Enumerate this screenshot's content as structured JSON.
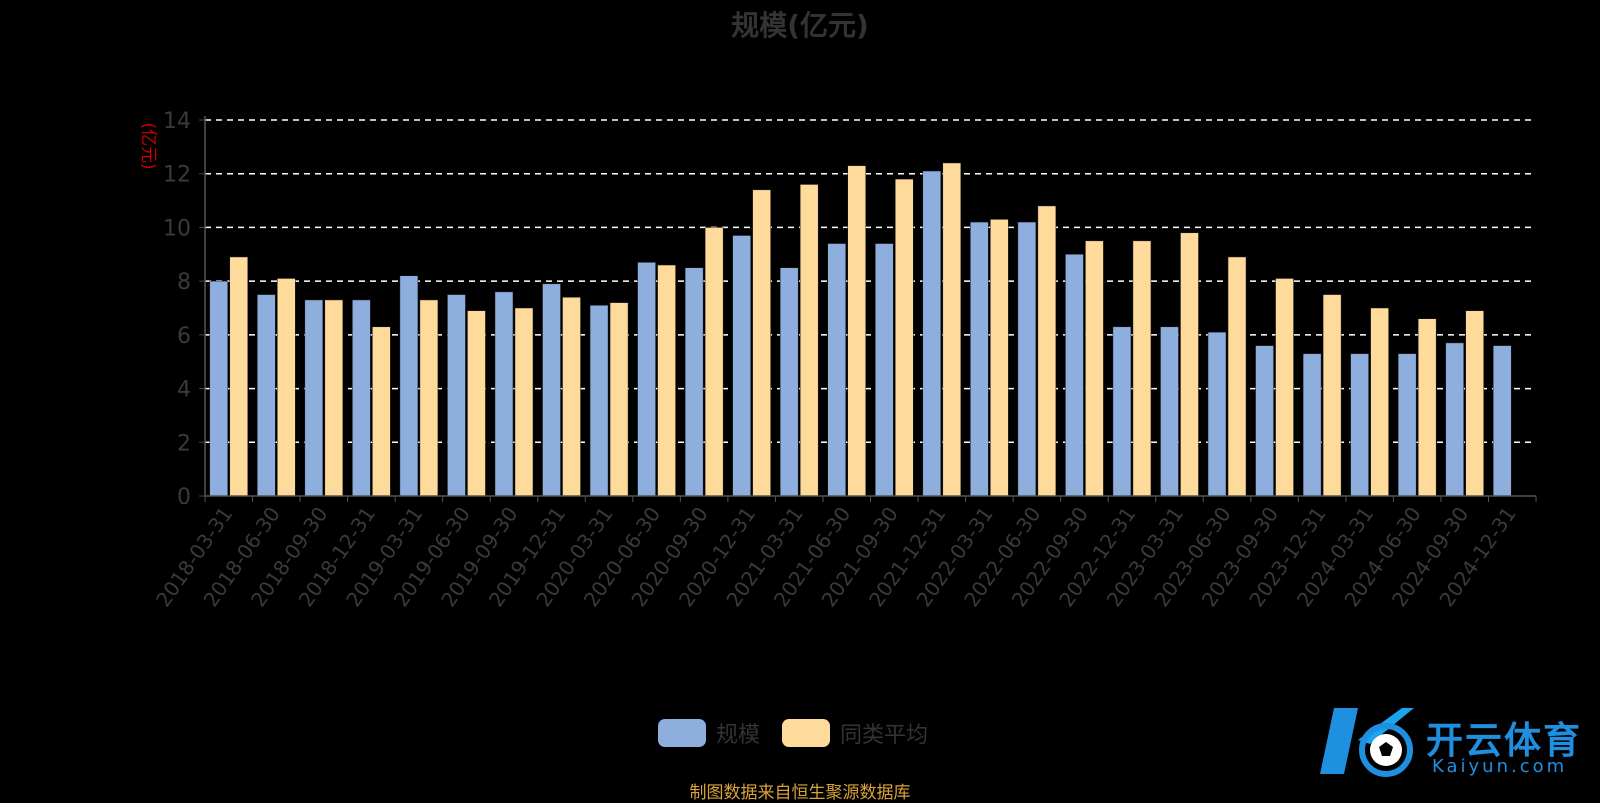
{
  "title": "规模(亿元)",
  "source_note": "制图数据来自恒生聚源数据库",
  "watermark": {
    "cn": "开云体育",
    "en": "Kaiyun.com"
  },
  "colors": {
    "scale": "#8eaede",
    "average": "#ffdb9b",
    "unit_label": "#cc0000",
    "axis_text": "#3a3a3a",
    "grid": "#ffffff",
    "title": "#333333"
  },
  "chart_data": {
    "type": "bar",
    "title": "规模(亿元)",
    "ylabel": "(亿元)",
    "ylim": [
      0,
      14
    ],
    "yticks": [
      0,
      2,
      4,
      6,
      8,
      10,
      12,
      14
    ],
    "grid": true,
    "legend_position": "bottom-center",
    "categories": [
      "2018-03-31",
      "2018-06-30",
      "2018-09-30",
      "2018-12-31",
      "2019-03-31",
      "2019-06-30",
      "2019-09-30",
      "2019-12-31",
      "2020-03-31",
      "2020-06-30",
      "2020-09-30",
      "2020-12-31",
      "2021-03-31",
      "2021-06-30",
      "2021-09-30",
      "2021-12-31",
      "2022-03-31",
      "2022-06-30",
      "2022-09-30",
      "2022-12-31",
      "2023-03-31",
      "2023-06-30",
      "2023-09-30",
      "2023-12-31",
      "2024-03-31",
      "2024-06-30",
      "2024-09-30",
      "2024-12-31"
    ],
    "series": [
      {
        "name": "规模",
        "color": "#8eaede",
        "values": [
          8.0,
          7.5,
          7.3,
          7.3,
          8.2,
          7.5,
          7.6,
          7.9,
          7.1,
          8.7,
          8.5,
          9.7,
          8.5,
          9.4,
          9.4,
          12.1,
          10.2,
          10.2,
          9.0,
          6.3,
          6.3,
          6.1,
          5.6,
          5.3,
          5.3,
          5.3,
          5.7,
          5.6
        ]
      },
      {
        "name": "同类平均",
        "color": "#ffdb9b",
        "values": [
          8.9,
          8.1,
          7.3,
          6.3,
          7.3,
          6.9,
          7.0,
          7.4,
          7.2,
          8.6,
          10.0,
          11.4,
          11.6,
          12.3,
          11.8,
          12.4,
          10.3,
          10.8,
          9.5,
          9.5,
          9.8,
          8.9,
          8.1,
          7.5,
          7.0,
          6.6,
          6.9,
          null
        ]
      }
    ]
  }
}
